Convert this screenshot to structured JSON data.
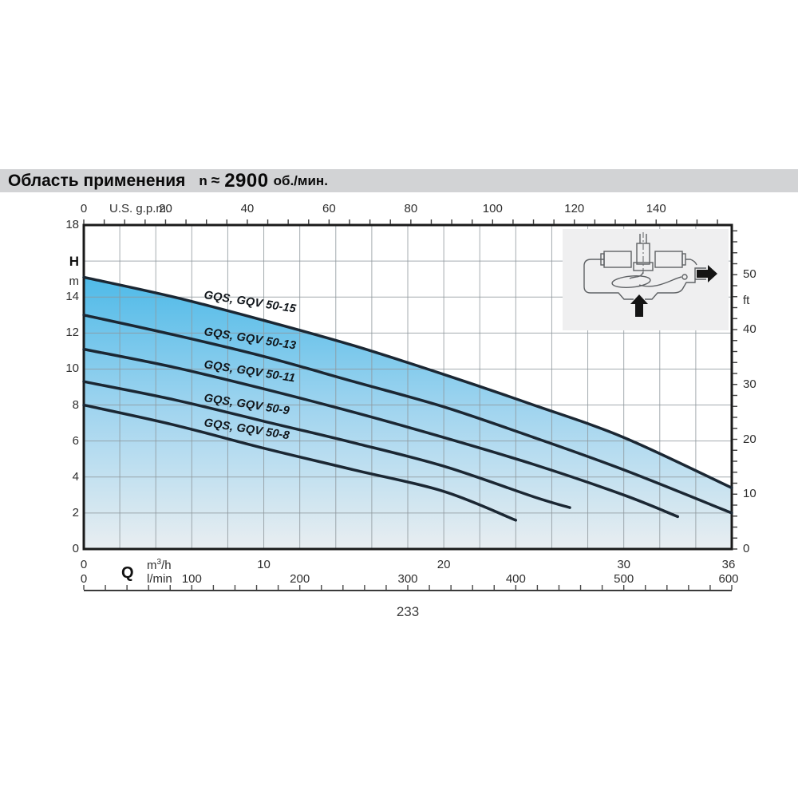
{
  "title_bar": {
    "label": "Область применения",
    "n_symbol": "n",
    "approx_symbol": "≈",
    "speed_value": "2900",
    "speed_unit": "об./мин.",
    "background": "#d2d3d5"
  },
  "page_number": "233",
  "inset": {
    "icons": [
      "pump-motor",
      "float-switch",
      "inlet-arrow",
      "outlet-arrow"
    ],
    "background": "#efeff0"
  },
  "chart_data": {
    "type": "line",
    "grid": {
      "x_step_m3h": 2,
      "y_step_m": 2
    },
    "colors": {
      "curve": "#1b2733",
      "fill_top": "#4fbae8",
      "fill_mid": "#a2d5ef",
      "fill_bottom": "#e9eef1",
      "grid": "#8e979c",
      "frame": "#1a1a1a"
    },
    "x_axis_top": {
      "label": "U.S. g.p.m.",
      "min": 0,
      "max": 158.5,
      "tick_labels": [
        0,
        20,
        40,
        60,
        80,
        100,
        120,
        140
      ],
      "minor_tick_step": 5
    },
    "x_axis_bottom_m3h": {
      "symbol": "Q",
      "unit_base": "m",
      "unit_exponent": "3",
      "unit_denominator": "/h",
      "min": 0,
      "max": 36,
      "tick_labels": [
        0,
        10,
        20,
        30,
        36
      ]
    },
    "x_axis_bottom_lmin": {
      "unit": "l/min",
      "min": 0,
      "max": 600,
      "tick_labels": [
        0,
        100,
        200,
        300,
        400,
        500,
        600
      ],
      "minor_tick_step": 20
    },
    "y_axis_left": {
      "symbol": "H",
      "unit": "m",
      "min": 0,
      "max": 18,
      "tick_labels": [
        18,
        14,
        12,
        10,
        8,
        6,
        4,
        2,
        0
      ]
    },
    "y_axis_right": {
      "unit": "ft",
      "tick_labels": [
        50,
        40,
        30,
        20,
        10,
        0
      ],
      "minor_tick_step": 2
    },
    "series": [
      {
        "name": "GQS, GQV 50-15",
        "points_m3h_H": [
          [
            0,
            15.1
          ],
          [
            5,
            14.0
          ],
          [
            10,
            12.7
          ],
          [
            15,
            11.3
          ],
          [
            20,
            9.7
          ],
          [
            25,
            8.0
          ],
          [
            30,
            6.2
          ],
          [
            36,
            3.4
          ]
        ]
      },
      {
        "name": "GQS, GQV 50-13",
        "points_m3h_H": [
          [
            0,
            13.0
          ],
          [
            5,
            11.9
          ],
          [
            10,
            10.7
          ],
          [
            15,
            9.3
          ],
          [
            20,
            7.9
          ],
          [
            25,
            6.2
          ],
          [
            30,
            4.4
          ],
          [
            36,
            2.0
          ]
        ]
      },
      {
        "name": "GQS, GQV 50-11",
        "points_m3h_H": [
          [
            0,
            11.1
          ],
          [
            5,
            10.1
          ],
          [
            10,
            8.9
          ],
          [
            15,
            7.6
          ],
          [
            20,
            6.2
          ],
          [
            25,
            4.7
          ],
          [
            30,
            3.0
          ],
          [
            33,
            1.8
          ]
        ]
      },
      {
        "name": "GQS, GQV 50-9",
        "points_m3h_H": [
          [
            0,
            9.3
          ],
          [
            5,
            8.3
          ],
          [
            10,
            7.1
          ],
          [
            15,
            5.9
          ],
          [
            20,
            4.6
          ],
          [
            25,
            2.9
          ],
          [
            27,
            2.3
          ]
        ]
      },
      {
        "name": "GQS, GQV 50-8",
        "points_m3h_H": [
          [
            0,
            8.0
          ],
          [
            5,
            6.9
          ],
          [
            10,
            5.6
          ],
          [
            15,
            4.4
          ],
          [
            20,
            3.2
          ],
          [
            24,
            1.6
          ]
        ]
      }
    ]
  }
}
